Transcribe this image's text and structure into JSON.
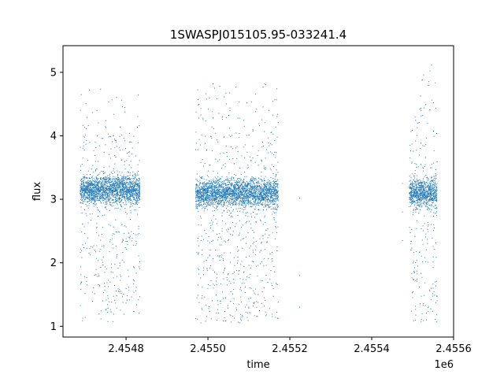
{
  "chart_data": {
    "type": "scatter",
    "title": "1SWASPJ015105.95-033241.4",
    "xlabel": "time",
    "ylabel": "flux",
    "x_offset_label": "1e6",
    "xlim": [
      2454646,
      2455600
    ],
    "ylim": [
      0.83,
      5.42
    ],
    "x_ticks": [
      2454800,
      2455000,
      2455200,
      2455400,
      2455600
    ],
    "x_tick_labels": [
      "2.4548",
      "2.4550",
      "2.4552",
      "2.4554",
      "2.4556"
    ],
    "y_ticks": [
      1,
      2,
      3,
      4,
      5
    ],
    "y_tick_labels": [
      "1",
      "2",
      "3",
      "4",
      "5"
    ],
    "grid": false,
    "marker_color": "#1f77b4",
    "series": [
      {
        "segments": [
          {
            "x_start": 2454688,
            "x_end": 2454834,
            "baseline": 3.15,
            "upper_max": 4.9,
            "lower_min": 1.05
          },
          {
            "x_start": 2454970,
            "x_end": 2455172,
            "baseline": 3.1,
            "upper_max": 5.1,
            "lower_min": 1.05
          },
          {
            "x_start": 2455492,
            "x_end": 2455560,
            "baseline": 3.1,
            "upper_max": 5.2,
            "lower_min": 1.05
          }
        ],
        "isolated_points": [
          {
            "x": 2455224,
            "y": 3.02
          },
          {
            "x": 2455224,
            "y": 1.8
          },
          {
            "x": 2455224,
            "y": 1.3
          },
          {
            "x": 2455475,
            "y": 3.25
          },
          {
            "x": 2455475,
            "y": 2.8
          },
          {
            "x": 2455475,
            "y": 2.35
          }
        ]
      }
    ]
  }
}
